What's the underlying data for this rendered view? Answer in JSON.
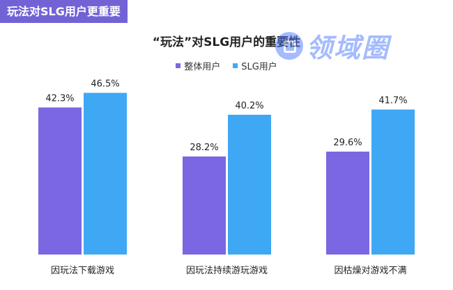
{
  "banner": {
    "text": "玩法对SLG用户更重要"
  },
  "watermark": {
    "text": "领域圈",
    "icon": "logo-icon"
  },
  "colors": {
    "banner": "#7163d6",
    "overall": "#7b67e1",
    "slg": "#3ea8f5"
  },
  "chart_data": {
    "type": "bar",
    "title": "“玩法”对SLG用户的重要性",
    "categories": [
      "因玩法下载游戏",
      "因玩法持续游玩游戏",
      "因枯燥对游戏不满"
    ],
    "series": [
      {
        "name": "整体用户",
        "values": [
          42.3,
          28.2,
          29.6
        ],
        "labels": [
          "42.3%",
          "28.2%",
          "29.6%"
        ]
      },
      {
        "name": "SLG用户",
        "values": [
          46.5,
          40.2,
          41.7
        ],
        "labels": [
          "46.5%",
          "40.2%",
          "41.7%"
        ]
      }
    ],
    "ylim": [
      0,
      50
    ],
    "grid": false,
    "legend_position": "top-center"
  }
}
